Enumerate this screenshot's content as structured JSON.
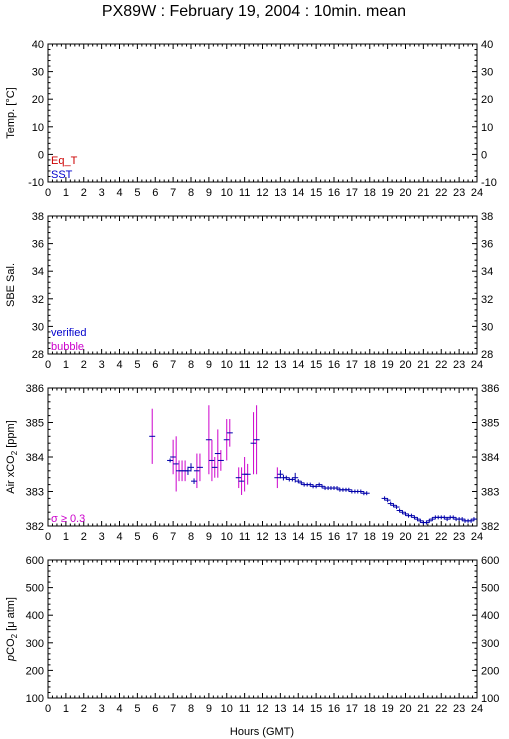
{
  "chart_data": {
    "type": "multi-panel time series",
    "title": "PX89W : February 19, 2004 : 10min. mean",
    "x_axis": {
      "label": "Hours (GMT)",
      "range": [
        0,
        24
      ],
      "ticks": [
        "0",
        "1",
        "2",
        "3",
        "4",
        "5",
        "6",
        "7",
        "8",
        "9",
        "10",
        "11",
        "12",
        "13",
        "14",
        "15",
        "16",
        "17",
        "18",
        "19",
        "20",
        "21",
        "22",
        "23",
        "24"
      ]
    },
    "panels": [
      {
        "id": "temp",
        "ylabel": "Temp. [°C]",
        "ylim": [
          -10,
          40
        ],
        "yticks": [
          "-10",
          "0",
          "10",
          "20",
          "30",
          "40"
        ],
        "yticks_values": [
          -10,
          0,
          10,
          20,
          30,
          40
        ],
        "legend": [
          {
            "text": "Eq_T",
            "color": "#cc0000"
          },
          {
            "text": "SST",
            "color": "#0000cc"
          }
        ],
        "series": []
      },
      {
        "id": "sal",
        "ylabel": "SBE Sal.",
        "ylim": [
          28,
          38
        ],
        "yticks": [
          "28",
          "30",
          "32",
          "34",
          "36",
          "38"
        ],
        "yticks_values": [
          28,
          30,
          32,
          34,
          36,
          38
        ],
        "legend": [
          {
            "text": "verified",
            "color": "#0000cc"
          },
          {
            "text": "bubble",
            "color": "#cc00cc"
          }
        ],
        "series": []
      },
      {
        "id": "xco2",
        "ylabel_main": "Air xCO",
        "ylabel_sub": "2",
        "ylabel_tail": " [ppm]",
        "ylim": [
          382,
          386
        ],
        "yticks": [
          "382",
          "383",
          "384",
          "385",
          "386"
        ],
        "yticks_values": [
          382,
          383,
          384,
          385,
          386
        ],
        "legend": [
          {
            "text": "σ ≥ 0.3",
            "color": "#cc00cc"
          }
        ],
        "series": [
          {
            "name": "σ ≥ 0.3",
            "color": "#cc00cc",
            "points": [
              {
                "x": 5.83,
                "y": 384.6,
                "err": 0.8
              },
              {
                "x": 7.0,
                "y": 384.0,
                "err": 0.5
              },
              {
                "x": 7.17,
                "y": 383.8,
                "err": 0.8
              },
              {
                "x": 7.33,
                "y": 383.6,
                "err": 0.3
              },
              {
                "x": 7.5,
                "y": 383.6,
                "err": 0.3
              },
              {
                "x": 7.67,
                "y": 383.6,
                "err": 0.3
              },
              {
                "x": 8.33,
                "y": 383.6,
                "err": 0.5
              },
              {
                "x": 8.5,
                "y": 383.7,
                "err": 0.4
              },
              {
                "x": 9.0,
                "y": 384.5,
                "err": 1.0
              },
              {
                "x": 9.17,
                "y": 383.9,
                "err": 0.6
              },
              {
                "x": 9.33,
                "y": 383.7,
                "err": 0.3
              },
              {
                "x": 9.5,
                "y": 384.1,
                "err": 0.7
              },
              {
                "x": 9.67,
                "y": 383.9,
                "err": 0.3
              },
              {
                "x": 10.0,
                "y": 384.5,
                "err": 0.6
              },
              {
                "x": 10.17,
                "y": 384.7,
                "err": 0.4
              },
              {
                "x": 10.67,
                "y": 383.4,
                "err": 0.3
              },
              {
                "x": 10.83,
                "y": 383.3,
                "err": 0.4
              },
              {
                "x": 11.0,
                "y": 383.5,
                "err": 0.5
              },
              {
                "x": 11.17,
                "y": 383.5,
                "err": 0.3
              },
              {
                "x": 11.5,
                "y": 384.4,
                "err": 0.9
              },
              {
                "x": 11.67,
                "y": 384.5,
                "err": 1.0
              },
              {
                "x": 12.83,
                "y": 383.4,
                "err": 0.3
              }
            ]
          },
          {
            "name": "",
            "color": "#0000aa",
            "points": [
              {
                "x": 6.83,
                "y": 383.9,
                "err": 0.05
              },
              {
                "x": 7.83,
                "y": 383.6,
                "err": 0.12
              },
              {
                "x": 8.0,
                "y": 383.7,
                "err": 0.12
              },
              {
                "x": 8.17,
                "y": 383.3,
                "err": 0.08
              },
              {
                "x": 13.0,
                "y": 383.5,
                "err": 0.12
              },
              {
                "x": 13.17,
                "y": 383.4,
                "err": 0.08
              },
              {
                "x": 13.33,
                "y": 383.4,
                "err": 0.06
              },
              {
                "x": 13.5,
                "y": 383.35,
                "err": 0.06
              },
              {
                "x": 13.67,
                "y": 383.35,
                "err": 0.05
              },
              {
                "x": 13.83,
                "y": 383.4,
                "err": 0.14
              },
              {
                "x": 14.0,
                "y": 383.3,
                "err": 0.06
              },
              {
                "x": 14.17,
                "y": 383.25,
                "err": 0.05
              },
              {
                "x": 14.33,
                "y": 383.2,
                "err": 0.05
              },
              {
                "x": 14.5,
                "y": 383.2,
                "err": 0.05
              },
              {
                "x": 14.67,
                "y": 383.2,
                "err": 0.05
              },
              {
                "x": 14.83,
                "y": 383.15,
                "err": 0.05
              },
              {
                "x": 15.0,
                "y": 383.15,
                "err": 0.05
              },
              {
                "x": 15.17,
                "y": 383.2,
                "err": 0.05
              },
              {
                "x": 15.33,
                "y": 383.15,
                "err": 0.05
              },
              {
                "x": 15.5,
                "y": 383.1,
                "err": 0.05
              },
              {
                "x": 15.67,
                "y": 383.1,
                "err": 0.05
              },
              {
                "x": 15.83,
                "y": 383.1,
                "err": 0.05
              },
              {
                "x": 16.0,
                "y": 383.1,
                "err": 0.05
              },
              {
                "x": 16.17,
                "y": 383.1,
                "err": 0.05
              },
              {
                "x": 16.33,
                "y": 383.05,
                "err": 0.05
              },
              {
                "x": 16.5,
                "y": 383.05,
                "err": 0.05
              },
              {
                "x": 16.67,
                "y": 383.05,
                "err": 0.05
              },
              {
                "x": 16.83,
                "y": 383.05,
                "err": 0.05
              },
              {
                "x": 17.0,
                "y": 383.0,
                "err": 0.05
              },
              {
                "x": 17.17,
                "y": 383.0,
                "err": 0.05
              },
              {
                "x": 17.33,
                "y": 383.0,
                "err": 0.05
              },
              {
                "x": 17.5,
                "y": 383.0,
                "err": 0.05
              },
              {
                "x": 17.67,
                "y": 382.95,
                "err": 0.05
              },
              {
                "x": 17.83,
                "y": 382.95,
                "err": 0.05
              },
              {
                "x": 18.83,
                "y": 382.8,
                "err": 0.06
              },
              {
                "x": 19.0,
                "y": 382.75,
                "err": 0.06
              },
              {
                "x": 19.17,
                "y": 382.65,
                "err": 0.05
              },
              {
                "x": 19.33,
                "y": 382.6,
                "err": 0.05
              },
              {
                "x": 19.5,
                "y": 382.55,
                "err": 0.05
              },
              {
                "x": 19.67,
                "y": 382.45,
                "err": 0.05
              },
              {
                "x": 19.83,
                "y": 382.4,
                "err": 0.05
              },
              {
                "x": 20.0,
                "y": 382.35,
                "err": 0.05
              },
              {
                "x": 20.17,
                "y": 382.3,
                "err": 0.05
              },
              {
                "x": 20.33,
                "y": 382.3,
                "err": 0.05
              },
              {
                "x": 20.5,
                "y": 382.25,
                "err": 0.05
              },
              {
                "x": 20.67,
                "y": 382.2,
                "err": 0.05
              },
              {
                "x": 20.83,
                "y": 382.15,
                "err": 0.05
              },
              {
                "x": 21.0,
                "y": 382.1,
                "err": 0.05
              },
              {
                "x": 21.17,
                "y": 382.1,
                "err": 0.05
              },
              {
                "x": 21.33,
                "y": 382.15,
                "err": 0.05
              },
              {
                "x": 21.5,
                "y": 382.2,
                "err": 0.05
              },
              {
                "x": 21.67,
                "y": 382.25,
                "err": 0.05
              },
              {
                "x": 21.83,
                "y": 382.25,
                "err": 0.05
              },
              {
                "x": 22.0,
                "y": 382.25,
                "err": 0.05
              },
              {
                "x": 22.17,
                "y": 382.25,
                "err": 0.05
              },
              {
                "x": 22.33,
                "y": 382.2,
                "err": 0.05
              },
              {
                "x": 22.5,
                "y": 382.25,
                "err": 0.06
              },
              {
                "x": 22.67,
                "y": 382.25,
                "err": 0.05
              },
              {
                "x": 22.83,
                "y": 382.2,
                "err": 0.05
              },
              {
                "x": 23.0,
                "y": 382.2,
                "err": 0.05
              },
              {
                "x": 23.17,
                "y": 382.2,
                "err": 0.05
              },
              {
                "x": 23.33,
                "y": 382.15,
                "err": 0.05
              },
              {
                "x": 23.5,
                "y": 382.15,
                "err": 0.05
              },
              {
                "x": 23.67,
                "y": 382.15,
                "err": 0.05
              },
              {
                "x": 23.83,
                "y": 382.2,
                "err": 0.05
              }
            ]
          }
        ]
      },
      {
        "id": "pco2",
        "ylabel_pre": "p",
        "ylabel_main": "CO",
        "ylabel_sub": "2",
        "ylabel_tail": " [μ atm]",
        "ylim": [
          100,
          600
        ],
        "yticks": [
          "100",
          "200",
          "300",
          "400",
          "500",
          "600"
        ],
        "yticks_values": [
          100,
          200,
          300,
          400,
          500,
          600
        ],
        "legend": [],
        "series": []
      }
    ]
  }
}
